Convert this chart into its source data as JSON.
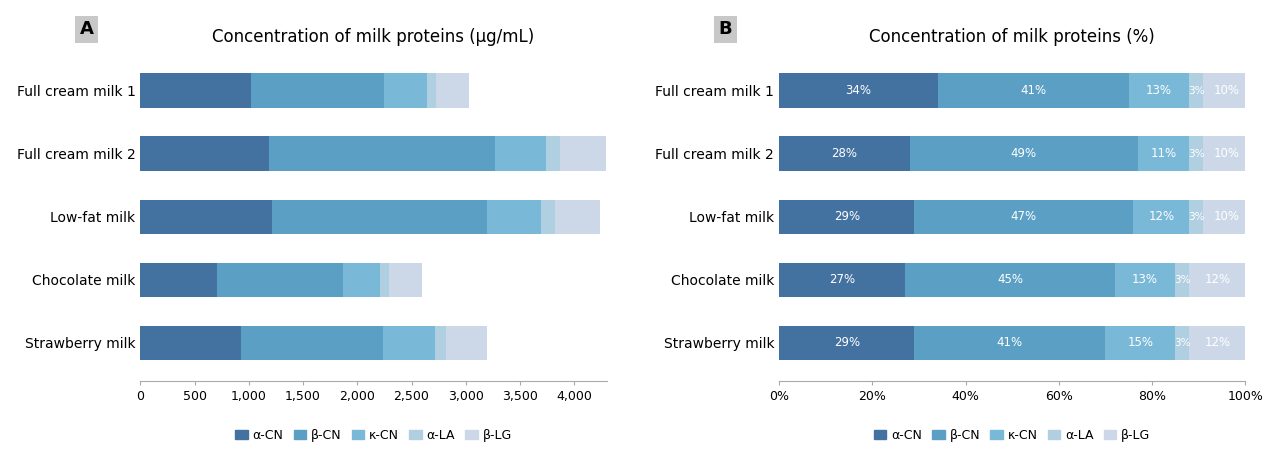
{
  "categories": [
    "Strawberry milk",
    "Chocolate milk",
    "Low-fat milk",
    "Full cream milk 2",
    "Full cream milk 1"
  ],
  "proteins": [
    "α-CN",
    "β-CN",
    "κ-CN",
    "α-LA",
    "β-LG"
  ],
  "colors": [
    "#4472a0",
    "#5b9fc4",
    "#7ab8d8",
    "#b0cfe0",
    "#ccd8e8"
  ],
  "values_ug": [
    [
      928,
      1312,
      480,
      96,
      384
    ],
    [
      702,
      1170,
      338,
      78,
      312
    ],
    [
      1218,
      1974,
      504,
      126,
      420
    ],
    [
      1190,
      2080,
      468,
      127,
      425
    ],
    [
      1020,
      1230,
      390,
      90,
      300
    ]
  ],
  "values_pct": [
    [
      29,
      41,
      15,
      3,
      12
    ],
    [
      27,
      45,
      13,
      3,
      12
    ],
    [
      29,
      47,
      12,
      3,
      10
    ],
    [
      28,
      49,
      11,
      3,
      10
    ],
    [
      34,
      41,
      13,
      3,
      10
    ]
  ],
  "title_a": "Concentration of milk proteins (µg/mL)",
  "title_b": "Concentration of milk proteins (%)",
  "label_a": "A",
  "label_b": "B",
  "xlim_a": [
    0,
    4300
  ],
  "xticks_a": [
    0,
    500,
    1000,
    1500,
    2000,
    2500,
    3000,
    3500,
    4000
  ],
  "xtick_labels_a": [
    "0",
    "500",
    "1,000",
    "1,500",
    "2,000",
    "2,500",
    "3,000",
    "3,500",
    "4,000"
  ],
  "xticks_b": [
    0,
    0.2,
    0.4,
    0.6,
    0.8,
    1.0
  ],
  "xtick_labels_b": [
    "0%",
    "20%",
    "40%",
    "60%",
    "80%",
    "100%"
  ],
  "background_color": "#ffffff",
  "label_box_color": "#c8c8c8"
}
